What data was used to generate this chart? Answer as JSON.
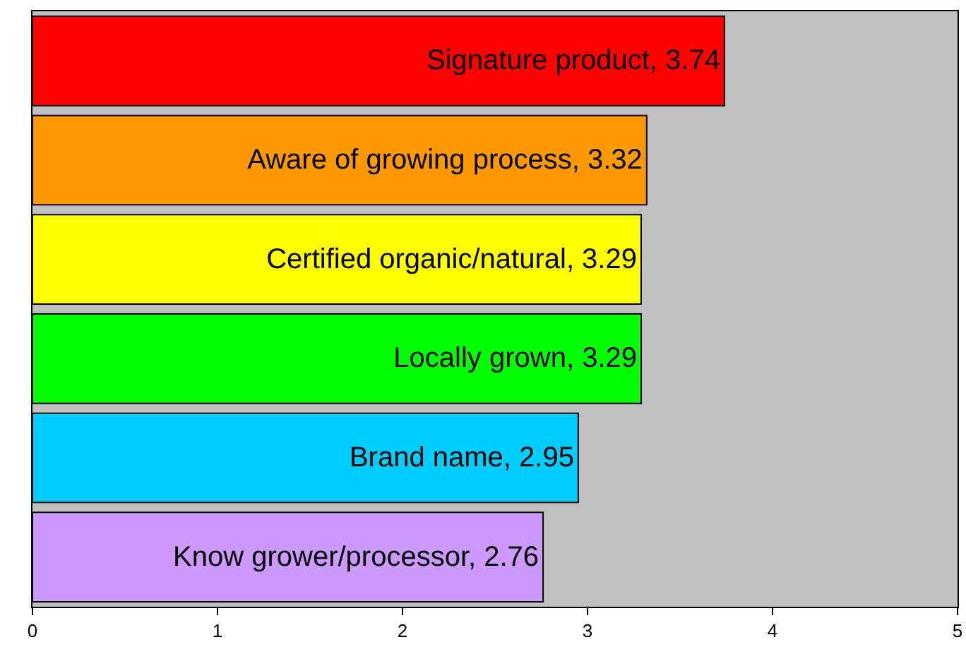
{
  "chart_data": {
    "type": "bar",
    "orientation": "horizontal",
    "categories": [
      null,
      null,
      null,
      null,
      null,
      null
    ],
    "values": [
      3.74,
      3.32,
      3.29,
      3.29,
      2.95,
      2.76
    ],
    "colors": [
      "#ff0000",
      "#ff9900",
      "#ffff00",
      "#00ff00",
      "#00ccff",
      "#cc99ff"
    ],
    "value_labels": [
      "Signature product, 3.74",
      "Aware of growing process, 3.32",
      "Certified organic/natural, 3.29",
      "Locally grown, 3.29",
      "Brand name, 2.95",
      "Know grower/processor, 2.76"
    ],
    "xlim": [
      0,
      5
    ],
    "xticks": [
      0,
      1,
      2,
      3,
      4,
      5
    ],
    "grid": false,
    "legend": false,
    "tick_labels": "x"
  }
}
